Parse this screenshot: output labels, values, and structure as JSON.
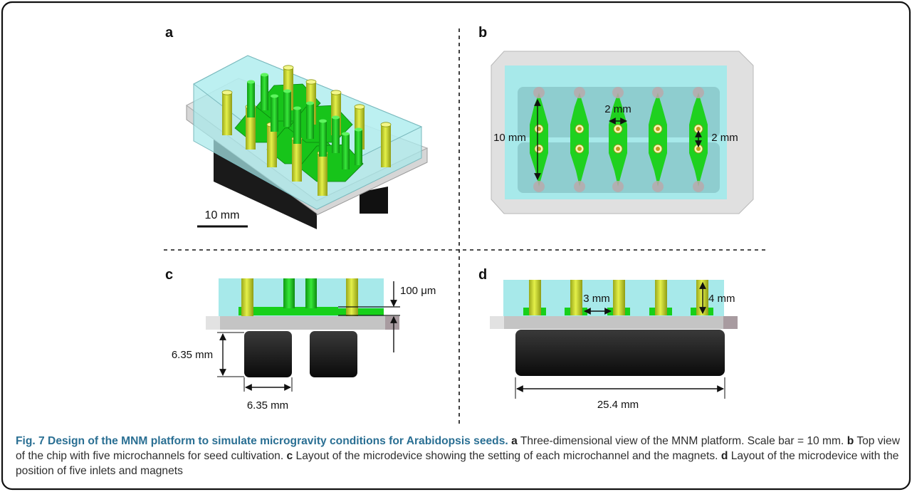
{
  "panels": {
    "a": {
      "letter": "a",
      "scale_bar_label": "10 mm"
    },
    "b": {
      "letter": "b",
      "dim_channel_length": "10 mm",
      "dim_channel_spacing": "2 mm",
      "dim_seed_spacing": "2 mm"
    },
    "c": {
      "letter": "c",
      "dim_channel_height": "100 μm",
      "dim_magnet_height": "6.35 mm",
      "dim_magnet_width": "6.35 mm"
    },
    "d": {
      "letter": "d",
      "dim_inlet_spacing": "3 mm",
      "dim_inlet_height": "4 mm",
      "dim_magnet_length": "25.4 mm"
    }
  },
  "caption": {
    "title": "Fig. 7 Design of the MNM platform to simulate microgravity conditions for Arabidopsis seeds.",
    "a_label": "a",
    "a_text": "Three-dimensional view of the MNM platform. Scale bar = 10 mm.",
    "b_label": "b",
    "b_text": "Top view of the chip with five microchannels for seed cultivation.",
    "c_label": "c",
    "c_text": "Layout of the microdevice showing the setting of each microchannel and the magnets.",
    "d_label": "d",
    "d_text": "Layout of the microdevice with the position of five inlets and magnets"
  },
  "colors": {
    "border": "#111111",
    "pdms": "#a7e9ea",
    "channel": "#17d01a",
    "inlet": "#c7db2c",
    "magnet": "#141414",
    "glass": "#bdbdbd",
    "caption_accent": "#2a6f93"
  }
}
